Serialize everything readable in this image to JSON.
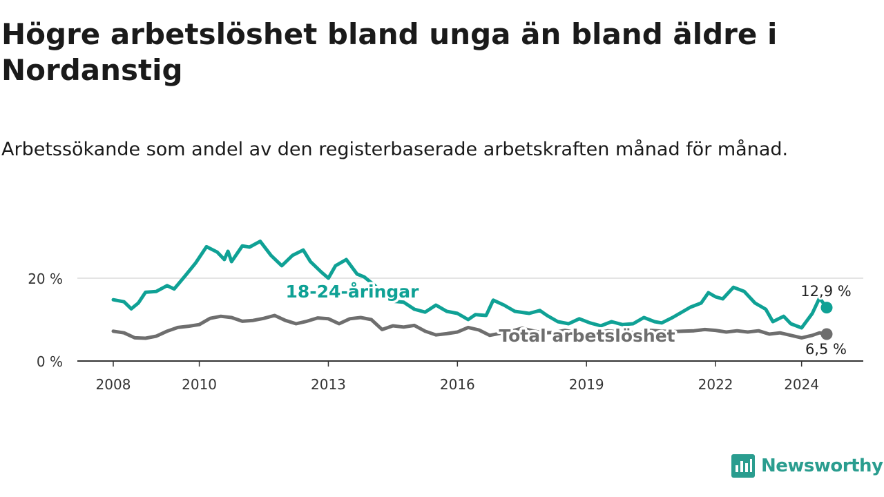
{
  "title": "Högre arbetslöshet bland unga än bland äldre i Nordanstig",
  "subtitle": "Arbetssökande som andel av den registerbaserade arbetskraften månad för månad.",
  "brand": {
    "name": "Newsworthy",
    "icon": "bar-chart-logo-icon",
    "color": "#2a9d8f"
  },
  "chart_data": {
    "type": "line",
    "x_tick_labels": [
      "2008",
      "2010",
      "2013",
      "2016",
      "2019",
      "2022",
      "2024"
    ],
    "x_ticks": [
      "2008-01",
      "2010-01",
      "2013-01",
      "2016-01",
      "2019-01",
      "2022-01",
      "2024-01"
    ],
    "y_tick_labels": [
      "0 %",
      "20 %"
    ],
    "y_ticks": [
      0,
      20
    ],
    "ylim": [
      0,
      30
    ],
    "xlim": [
      "2008-01",
      "2024-08"
    ],
    "grid": true,
    "series": [
      {
        "name": "18-24-åringar",
        "color": "#0fa195",
        "last_label": "12,9 %",
        "points": [
          [
            "2008-01",
            14.8
          ],
          [
            "2008-04",
            14.3
          ],
          [
            "2008-06",
            12.6
          ],
          [
            "2008-08",
            14.0
          ],
          [
            "2008-10",
            16.6
          ],
          [
            "2009-01",
            16.8
          ],
          [
            "2009-04",
            18.2
          ],
          [
            "2009-06",
            17.4
          ],
          [
            "2009-09",
            20.5
          ],
          [
            "2009-12",
            23.7
          ],
          [
            "2010-03",
            27.6
          ],
          [
            "2010-06",
            26.3
          ],
          [
            "2010-08",
            24.5
          ],
          [
            "2010-09",
            26.5
          ],
          [
            "2010-10",
            24.0
          ],
          [
            "2011-01",
            27.8
          ],
          [
            "2011-03",
            27.5
          ],
          [
            "2011-06",
            28.9
          ],
          [
            "2011-09",
            25.5
          ],
          [
            "2011-12",
            23.0
          ],
          [
            "2012-03",
            25.5
          ],
          [
            "2012-06",
            26.8
          ],
          [
            "2012-08",
            24.0
          ],
          [
            "2012-11",
            21.5
          ],
          [
            "2013-01",
            20.0
          ],
          [
            "2013-03",
            23.0
          ],
          [
            "2013-06",
            24.5
          ],
          [
            "2013-09",
            21.0
          ],
          [
            "2013-11",
            20.3
          ],
          [
            "2014-02",
            18.2
          ],
          [
            "2014-06",
            14.5
          ],
          [
            "2014-10",
            14.2
          ],
          [
            "2015-01",
            12.5
          ],
          [
            "2015-04",
            11.8
          ],
          [
            "2015-07",
            13.5
          ],
          [
            "2015-10",
            12.0
          ],
          [
            "2016-01",
            11.5
          ],
          [
            "2016-04",
            10.0
          ],
          [
            "2016-06",
            11.2
          ],
          [
            "2016-09",
            11.0
          ],
          [
            "2016-11",
            14.7
          ],
          [
            "2017-02",
            13.5
          ],
          [
            "2017-05",
            12.0
          ],
          [
            "2017-09",
            11.5
          ],
          [
            "2017-12",
            12.2
          ],
          [
            "2018-02",
            11.0
          ],
          [
            "2018-05",
            9.5
          ],
          [
            "2018-08",
            9.0
          ],
          [
            "2018-11",
            10.2
          ],
          [
            "2019-02",
            9.2
          ],
          [
            "2019-05",
            8.5
          ],
          [
            "2019-08",
            9.5
          ],
          [
            "2019-11",
            8.8
          ],
          [
            "2020-02",
            9.0
          ],
          [
            "2020-05",
            10.5
          ],
          [
            "2020-08",
            9.5
          ],
          [
            "2020-10",
            9.2
          ],
          [
            "2021-01",
            10.5
          ],
          [
            "2021-04",
            12.0
          ],
          [
            "2021-06",
            13.0
          ],
          [
            "2021-09",
            14.0
          ],
          [
            "2021-11",
            16.5
          ],
          [
            "2022-01",
            15.5
          ],
          [
            "2022-03",
            15.0
          ],
          [
            "2022-06",
            17.8
          ],
          [
            "2022-09",
            16.8
          ],
          [
            "2022-12",
            14.0
          ],
          [
            "2023-03",
            12.5
          ],
          [
            "2023-05",
            9.5
          ],
          [
            "2023-08",
            10.8
          ],
          [
            "2023-10",
            9.0
          ],
          [
            "2024-01",
            8.0
          ],
          [
            "2024-04",
            11.5
          ],
          [
            "2024-06",
            15.2
          ],
          [
            "2024-08",
            12.9
          ]
        ]
      },
      {
        "name": "Total arbetslöshet",
        "color": "#6e6e6e",
        "last_label": "6,5 %",
        "points": [
          [
            "2008-01",
            7.2
          ],
          [
            "2008-04",
            6.8
          ],
          [
            "2008-07",
            5.6
          ],
          [
            "2008-10",
            5.5
          ],
          [
            "2009-01",
            6.0
          ],
          [
            "2009-04",
            7.2
          ],
          [
            "2009-07",
            8.1
          ],
          [
            "2009-10",
            8.4
          ],
          [
            "2010-01",
            8.8
          ],
          [
            "2010-04",
            10.3
          ],
          [
            "2010-07",
            10.8
          ],
          [
            "2010-10",
            10.5
          ],
          [
            "2011-01",
            9.6
          ],
          [
            "2011-04",
            9.8
          ],
          [
            "2011-07",
            10.3
          ],
          [
            "2011-10",
            11.0
          ],
          [
            "2012-01",
            9.8
          ],
          [
            "2012-04",
            9.0
          ],
          [
            "2012-07",
            9.6
          ],
          [
            "2012-10",
            10.4
          ],
          [
            "2013-01",
            10.2
          ],
          [
            "2013-04",
            9.0
          ],
          [
            "2013-07",
            10.2
          ],
          [
            "2013-10",
            10.5
          ],
          [
            "2014-01",
            10.0
          ],
          [
            "2014-04",
            7.6
          ],
          [
            "2014-07",
            8.5
          ],
          [
            "2014-10",
            8.2
          ],
          [
            "2015-01",
            8.6
          ],
          [
            "2015-04",
            7.2
          ],
          [
            "2015-07",
            6.3
          ],
          [
            "2015-10",
            6.6
          ],
          [
            "2016-01",
            7.0
          ],
          [
            "2016-04",
            8.1
          ],
          [
            "2016-07",
            7.5
          ],
          [
            "2016-10",
            6.2
          ],
          [
            "2017-01",
            6.7
          ],
          [
            "2017-04",
            7.2
          ],
          [
            "2017-07",
            7.9
          ],
          [
            "2017-10",
            7.3
          ],
          [
            "2018-01",
            6.8
          ],
          [
            "2018-04",
            6.9
          ],
          [
            "2018-07",
            7.4
          ],
          [
            "2018-10",
            6.9
          ],
          [
            "2019-01",
            6.5
          ],
          [
            "2019-04",
            6.8
          ],
          [
            "2019-07",
            7.3
          ],
          [
            "2019-10",
            7.0
          ],
          [
            "2020-01",
            6.8
          ],
          [
            "2020-04",
            7.0
          ],
          [
            "2020-07",
            7.4
          ],
          [
            "2020-10",
            7.2
          ],
          [
            "2021-01",
            7.1
          ],
          [
            "2021-04",
            7.2
          ],
          [
            "2021-07",
            7.3
          ],
          [
            "2021-10",
            7.6
          ],
          [
            "2022-01",
            7.4
          ],
          [
            "2022-04",
            7.0
          ],
          [
            "2022-07",
            7.3
          ],
          [
            "2022-10",
            7.0
          ],
          [
            "2023-01",
            7.3
          ],
          [
            "2023-04",
            6.5
          ],
          [
            "2023-07",
            6.8
          ],
          [
            "2023-10",
            6.2
          ],
          [
            "2024-01",
            5.6
          ],
          [
            "2024-04",
            6.2
          ],
          [
            "2024-06",
            6.8
          ],
          [
            "2024-08",
            6.5
          ]
        ]
      }
    ]
  }
}
